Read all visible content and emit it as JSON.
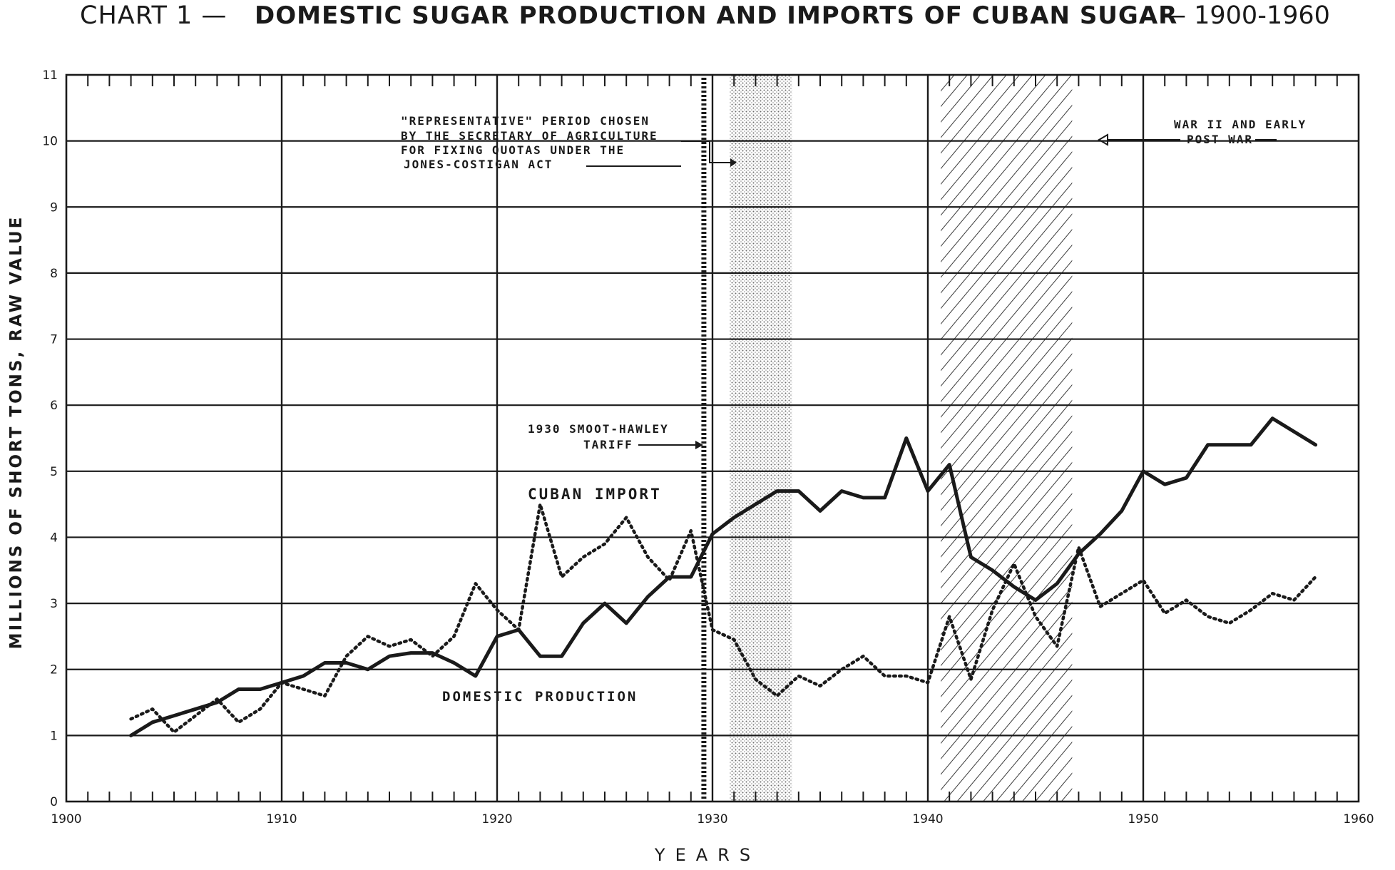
{
  "chart_data": {
    "type": "line",
    "title_prefix": "CHART 1 —",
    "title": "DOMESTIC SUGAR PRODUCTION AND IMPORTS OF CUBAN SUGAR",
    "title_suffix": "— 1900-1960",
    "xlabel": "YEARS",
    "ylabel": "MILLIONS OF SHORT TONS, RAW VALUE",
    "xlim": [
      1900,
      1960
    ],
    "ylim": [
      0,
      11
    ],
    "x_ticks": [
      "1900",
      "1910",
      "1920",
      "1930",
      "1940",
      "1950",
      "1960"
    ],
    "y_ticks": [
      "0",
      "1",
      "2",
      "3",
      "4",
      "5",
      "6",
      "7",
      "8",
      "9",
      "10",
      "11"
    ],
    "grid": true,
    "series": [
      {
        "name": "CUBAN IMPORT",
        "style": "solid",
        "color": "#1a1a1a",
        "points": [
          [
            1903,
            1.0
          ],
          [
            1904,
            1.2
          ],
          [
            1905,
            1.3
          ],
          [
            1906,
            1.4
          ],
          [
            1907,
            1.5
          ],
          [
            1908,
            1.7
          ],
          [
            1909,
            1.7
          ],
          [
            1910,
            1.8
          ],
          [
            1911,
            1.9
          ],
          [
            1912,
            2.1
          ],
          [
            1913,
            2.1
          ],
          [
            1914,
            2.0
          ],
          [
            1915,
            2.2
          ],
          [
            1916,
            2.25
          ],
          [
            1917,
            2.25
          ],
          [
            1918,
            2.1
          ],
          [
            1919,
            1.9
          ],
          [
            1920,
            2.5
          ],
          [
            1921,
            2.6
          ],
          [
            1922,
            2.2
          ],
          [
            1923,
            2.2
          ],
          [
            1924,
            2.7
          ],
          [
            1925,
            3.0
          ],
          [
            1926,
            2.7
          ],
          [
            1927,
            3.1
          ],
          [
            1928,
            3.4
          ],
          [
            1929,
            3.4
          ],
          [
            1930,
            4.05
          ],
          [
            1931,
            4.3
          ],
          [
            1932,
            4.5
          ],
          [
            1933,
            4.7
          ],
          [
            1934,
            4.7
          ],
          [
            1935,
            4.4
          ],
          [
            1936,
            4.7
          ],
          [
            1937,
            4.6
          ],
          [
            1938,
            4.6
          ],
          [
            1939,
            5.5
          ],
          [
            1940,
            4.7
          ],
          [
            1941,
            5.1
          ],
          [
            1942,
            3.7
          ],
          [
            1943,
            3.5
          ],
          [
            1944,
            3.25
          ],
          [
            1945,
            3.05
          ],
          [
            1946,
            3.3
          ],
          [
            1947,
            3.75
          ],
          [
            1948,
            4.05
          ],
          [
            1949,
            4.4
          ],
          [
            1950,
            5.0
          ],
          [
            1951,
            4.8
          ],
          [
            1952,
            4.9
          ],
          [
            1953,
            5.4
          ],
          [
            1954,
            5.4
          ],
          [
            1955,
            5.4
          ],
          [
            1956,
            5.8
          ],
          [
            1957,
            5.6
          ],
          [
            1958,
            5.4
          ]
        ]
      },
      {
        "name": "DOMESTIC PRODUCTION",
        "style": "dotted",
        "color": "#1a1a1a",
        "points": [
          [
            1903,
            1.25
          ],
          [
            1904,
            1.4
          ],
          [
            1905,
            1.05
          ],
          [
            1906,
            1.3
          ],
          [
            1907,
            1.55
          ],
          [
            1908,
            1.2
          ],
          [
            1909,
            1.4
          ],
          [
            1910,
            1.8
          ],
          [
            1911,
            1.7
          ],
          [
            1912,
            1.6
          ],
          [
            1913,
            2.2
          ],
          [
            1914,
            2.5
          ],
          [
            1915,
            2.35
          ],
          [
            1916,
            2.45
          ],
          [
            1917,
            2.2
          ],
          [
            1918,
            2.5
          ],
          [
            1919,
            3.3
          ],
          [
            1920,
            2.9
          ],
          [
            1921,
            2.6
          ],
          [
            1922,
            4.5
          ],
          [
            1923,
            3.4
          ],
          [
            1924,
            3.7
          ],
          [
            1925,
            3.9
          ],
          [
            1926,
            4.3
          ],
          [
            1927,
            3.7
          ],
          [
            1928,
            3.35
          ],
          [
            1929,
            4.1
          ],
          [
            1930,
            2.6
          ],
          [
            1931,
            2.45
          ],
          [
            1932,
            1.85
          ],
          [
            1933,
            1.6
          ],
          [
            1934,
            1.9
          ],
          [
            1935,
            1.75
          ],
          [
            1936,
            2.0
          ],
          [
            1937,
            2.2
          ],
          [
            1938,
            1.9
          ],
          [
            1939,
            1.9
          ],
          [
            1940,
            1.8
          ],
          [
            1941,
            2.8
          ],
          [
            1942,
            1.85
          ],
          [
            1943,
            2.9
          ],
          [
            1944,
            3.6
          ],
          [
            1945,
            2.8
          ],
          [
            1946,
            2.35
          ],
          [
            1947,
            3.85
          ],
          [
            1948,
            2.95
          ],
          [
            1949,
            3.15
          ],
          [
            1950,
            3.35
          ],
          [
            1951,
            2.85
          ],
          [
            1952,
            3.05
          ],
          [
            1953,
            2.8
          ],
          [
            1954,
            2.7
          ],
          [
            1955,
            2.9
          ],
          [
            1956,
            3.15
          ],
          [
            1957,
            3.05
          ],
          [
            1958,
            3.4
          ]
        ]
      }
    ],
    "shaded_periods": [
      {
        "from": 1930.8,
        "to": 1933.7,
        "pattern": "stipple"
      },
      {
        "from": 1940.6,
        "to": 1946.7,
        "pattern": "hatch"
      }
    ],
    "marker_year": 1929.6,
    "annotations": [
      {
        "id": "representative",
        "lines": [
          "\"REPRESENTATIVE\" PERIOD CHOSEN",
          "BY THE SECRETARY OF AGRICULTURE",
          "FOR FIXING QUOTAS UNDER THE",
          "JONES-COSTIGAN ACT"
        ]
      },
      {
        "id": "smoot",
        "lines": [
          "1930 SMOOT-HAWLEY",
          "TARIFF"
        ]
      },
      {
        "id": "war",
        "lines": [
          "WAR II AND EARLY",
          "POST WAR"
        ]
      }
    ]
  }
}
